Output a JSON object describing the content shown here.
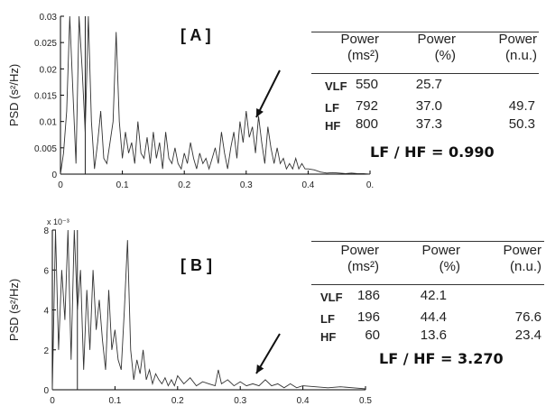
{
  "panels": [
    {
      "label": "[ A ]",
      "ylabel": "PSD (s²/Hz)",
      "y_ticks": [
        "0",
        "0.005",
        "0.01",
        "0.015",
        "0.02",
        "0.025",
        "0.03"
      ],
      "x_ticks": [
        "0",
        "0.1",
        "0.2",
        "0.3",
        "0.4",
        "0."
      ],
      "exponent": "",
      "table": {
        "headers": [
          [
            "Power",
            "(ms²)"
          ],
          [
            "Power",
            "(%)"
          ],
          [
            "Power",
            "(n.u.)"
          ]
        ],
        "rows": [
          {
            "band": "VLF",
            "ms2": "550",
            "pct": "25.7",
            "nu": ""
          },
          {
            "band": "LF",
            "ms2": "792",
            "pct": "37.0",
            "nu": "49.7"
          },
          {
            "band": "HF",
            "ms2": "800",
            "pct": "37.3",
            "nu": "50.3"
          }
        ]
      },
      "ratio": "LF / HF =  0.990"
    },
    {
      "label": "[ B ]",
      "ylabel": "PSD (s²/Hz)",
      "y_ticks": [
        "0",
        "2",
        "4",
        "6",
        "8"
      ],
      "x_ticks": [
        "0",
        "0.1",
        "0.2",
        "0.3",
        "0.4",
        "0.5"
      ],
      "exponent": "x 10⁻³",
      "table": {
        "headers": [
          [
            "Power",
            "(ms²)"
          ],
          [
            "Power",
            "(%)"
          ],
          [
            "Power",
            "(n.u.)"
          ]
        ],
        "rows": [
          {
            "band": "VLF",
            "ms2": "186",
            "pct": "42.1",
            "nu": ""
          },
          {
            "band": "LF",
            "ms2": "196",
            "pct": "44.4",
            "nu": "76.6"
          },
          {
            "band": "HF",
            "ms2": "60",
            "pct": "13.6",
            "nu": "23.4"
          }
        ]
      },
      "ratio": "LF / HF =  3.270"
    }
  ],
  "chart_data": [
    {
      "type": "line",
      "title": "",
      "xlabel": "",
      "ylabel": "PSD (s²/Hz)",
      "xlim": [
        0,
        0.5
      ],
      "ylim": [
        0,
        0.03
      ],
      "grid": false,
      "series": [
        {
          "x": [
            0.0,
            0.005,
            0.01,
            0.015,
            0.02,
            0.025,
            0.03,
            0.035,
            0.04,
            0.045,
            0.05,
            0.055,
            0.06,
            0.065,
            0.07,
            0.075,
            0.08,
            0.085,
            0.09,
            0.095,
            0.1,
            0.105,
            0.11,
            0.115,
            0.12,
            0.125,
            0.13,
            0.135,
            0.14,
            0.145,
            0.15,
            0.155,
            0.16,
            0.165,
            0.17,
            0.175,
            0.18,
            0.185,
            0.19,
            0.195,
            0.2,
            0.205,
            0.21,
            0.215,
            0.22,
            0.225,
            0.23,
            0.235,
            0.24,
            0.245,
            0.25,
            0.255,
            0.26,
            0.265,
            0.27,
            0.275,
            0.28,
            0.285,
            0.29,
            0.295,
            0.3,
            0.305,
            0.31,
            0.315,
            0.32,
            0.325,
            0.33,
            0.335,
            0.34,
            0.345,
            0.35,
            0.355,
            0.36,
            0.365,
            0.37,
            0.375,
            0.38,
            0.385,
            0.39,
            0.395,
            0.4,
            0.41,
            0.42,
            0.43,
            0.44,
            0.45,
            0.46,
            0.47,
            0.48,
            0.49,
            0.5
          ],
          "y": [
            0.0,
            0.004,
            0.012,
            0.03,
            0.016,
            0.002,
            0.03,
            0.02,
            0.008,
            0.03,
            0.01,
            0.001,
            0.006,
            0.012,
            0.003,
            0.002,
            0.006,
            0.01,
            0.027,
            0.01,
            0.003,
            0.008,
            0.004,
            0.006,
            0.002,
            0.01,
            0.004,
            0.003,
            0.007,
            0.002,
            0.008,
            0.003,
            0.006,
            0.001,
            0.008,
            0.003,
            0.002,
            0.005,
            0.002,
            0.001,
            0.004,
            0.002,
            0.006,
            0.003,
            0.001,
            0.004,
            0.002,
            0.003,
            0.001,
            0.003,
            0.005,
            0.002,
            0.008,
            0.004,
            0.001,
            0.005,
            0.008,
            0.003,
            0.01,
            0.006,
            0.012,
            0.007,
            0.009,
            0.004,
            0.011,
            0.006,
            0.002,
            0.009,
            0.005,
            0.002,
            0.005,
            0.002,
            0.003,
            0.001,
            0.002,
            0.001,
            0.003,
            0.001,
            0.002,
            0.001,
            0.001,
            0.0008,
            0.0004,
            0.0002,
            0.0003,
            0.0002,
            0.0001,
            0.0002,
            0.0001,
            0.0001,
            0.0
          ]
        }
      ],
      "annotations": [
        "[ A ]"
      ],
      "vline_x": 0.04
    },
    {
      "type": "line",
      "title": "",
      "xlabel": "",
      "ylabel": "PSD (s²/Hz)",
      "xlim": [
        0,
        0.5
      ],
      "ylim": [
        0,
        8
      ],
      "y_scale_label": "x 10⁻³",
      "grid": false,
      "series": [
        {
          "x": [
            0.0,
            0.005,
            0.01,
            0.015,
            0.02,
            0.025,
            0.03,
            0.035,
            0.04,
            0.045,
            0.05,
            0.055,
            0.06,
            0.065,
            0.07,
            0.075,
            0.08,
            0.085,
            0.09,
            0.095,
            0.1,
            0.105,
            0.11,
            0.115,
            0.12,
            0.125,
            0.13,
            0.135,
            0.14,
            0.145,
            0.15,
            0.155,
            0.16,
            0.165,
            0.17,
            0.175,
            0.18,
            0.185,
            0.19,
            0.195,
            0.2,
            0.21,
            0.22,
            0.23,
            0.24,
            0.25,
            0.26,
            0.265,
            0.27,
            0.28,
            0.29,
            0.3,
            0.31,
            0.32,
            0.33,
            0.34,
            0.35,
            0.36,
            0.37,
            0.38,
            0.39,
            0.4,
            0.42,
            0.44,
            0.46,
            0.48,
            0.5
          ],
          "y": [
            0.0,
            8.0,
            2.0,
            6.0,
            3.5,
            8.0,
            1.5,
            8.0,
            4.0,
            6.0,
            1.0,
            5.0,
            2.0,
            6.0,
            3.0,
            4.5,
            2.5,
            1.0,
            5.0,
            2.0,
            3.0,
            1.5,
            1.0,
            4.0,
            7.5,
            2.0,
            0.5,
            1.5,
            0.8,
            2.0,
            0.5,
            1.0,
            0.3,
            0.8,
            0.5,
            0.3,
            0.6,
            0.2,
            0.5,
            0.2,
            0.7,
            0.3,
            0.6,
            0.2,
            0.4,
            0.3,
            0.2,
            1.0,
            0.3,
            0.5,
            0.2,
            0.4,
            0.2,
            0.3,
            0.2,
            0.5,
            0.2,
            0.3,
            0.1,
            0.3,
            0.1,
            0.2,
            0.15,
            0.1,
            0.15,
            0.1,
            0.05
          ]
        }
      ],
      "annotations": [
        "[ B ]"
      ],
      "vline_x": 0.04
    }
  ]
}
